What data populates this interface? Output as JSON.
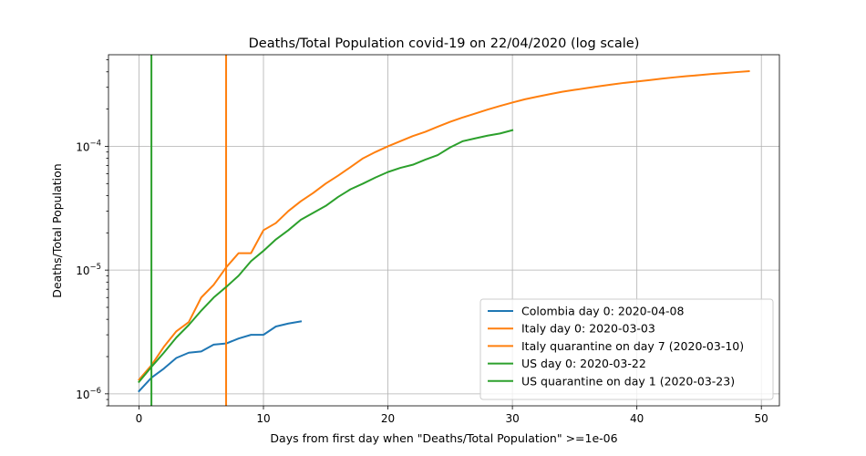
{
  "chart_data": {
    "type": "line",
    "title": "Deaths/Total Population covid-19 on 22/04/2020  (log scale)",
    "xlabel": "Days from first day when \"Deaths/Total Population\" >=1e-06",
    "ylabel": "Deaths/Total Population",
    "yscale": "log",
    "xlim": [
      -2.45,
      51.45
    ],
    "ylim": [
      8e-07,
      0.00055
    ],
    "x_ticks": [
      0,
      10,
      20,
      30,
      40,
      50
    ],
    "x_tick_labels": [
      "0",
      "10",
      "20",
      "30",
      "40",
      "50"
    ],
    "y_ticks": [
      1e-06,
      1e-05,
      0.0001
    ],
    "y_tick_labels": [
      {
        "base": "10",
        "exp": "−6"
      },
      {
        "base": "10",
        "exp": "−5"
      },
      {
        "base": "10",
        "exp": "−4"
      }
    ],
    "grid": true,
    "legend_position": "lower right",
    "series": [
      {
        "name": "Colombia day 0: 2020-04-08",
        "color": "#1f77b4",
        "x": [
          0,
          1,
          2,
          3,
          4,
          5,
          6,
          7,
          8,
          9,
          10,
          11,
          12,
          13
        ],
        "y": [
          1.05e-06,
          1.35e-06,
          1.6e-06,
          1.95e-06,
          2.15e-06,
          2.2e-06,
          2.5e-06,
          2.55e-06,
          2.8e-06,
          3e-06,
          3e-06,
          3.5e-06,
          3.7e-06,
          3.85e-06
        ]
      },
      {
        "name": "Italy day 0: 2020-03-03",
        "color": "#ff7f0e",
        "x": [
          0,
          1,
          2,
          3,
          4,
          5,
          6,
          7,
          8,
          9,
          10,
          11,
          12,
          13,
          14,
          15,
          16,
          17,
          18,
          19,
          20,
          21,
          22,
          23,
          24,
          25,
          26,
          27,
          28,
          29,
          30,
          31,
          32,
          33,
          34,
          35,
          36,
          37,
          38,
          39,
          40,
          41,
          42,
          43,
          44,
          45,
          46,
          47,
          48,
          49
        ],
        "y": [
          1.3e-06,
          1.7e-06,
          2.4e-06,
          3.2e-06,
          3.8e-06,
          6e-06,
          7.6e-06,
          1.05e-05,
          1.37e-05,
          1.37e-05,
          2.1e-05,
          2.4e-05,
          3e-05,
          3.6e-05,
          4.2e-05,
          5e-05,
          5.8e-05,
          6.8e-05,
          8e-05,
          9e-05,
          0.0001,
          0.00011,
          0.000121,
          0.000131,
          0.000144,
          0.000158,
          0.000171,
          0.000184,
          0.000198,
          0.000212,
          0.000226,
          0.00024,
          0.000252,
          0.000264,
          0.000276,
          0.000286,
          0.000296,
          0.000306,
          0.000316,
          0.000326,
          0.000334,
          0.000343,
          0.000352,
          0.000361,
          0.000369,
          0.000376,
          0.000384,
          0.000391,
          0.000398,
          0.000405
        ]
      },
      {
        "name": "Italy quarantine on day 7 (2020-03-10)",
        "color": "#ff7f0e",
        "vline_x": 7
      },
      {
        "name": "US day 0: 2020-03-22",
        "color": "#2ca02c",
        "x": [
          0,
          1,
          2,
          3,
          4,
          5,
          6,
          7,
          8,
          9,
          10,
          11,
          12,
          13,
          14,
          15,
          16,
          17,
          18,
          19,
          20,
          21,
          22,
          23,
          24,
          25,
          26,
          27,
          28,
          29,
          30
        ],
        "y": [
          1.25e-06,
          1.65e-06,
          2.15e-06,
          2.85e-06,
          3.6e-06,
          4.7e-06,
          6e-06,
          7.3e-06,
          9e-06,
          1.18e-05,
          1.43e-05,
          1.77e-05,
          2.1e-05,
          2.55e-05,
          2.9e-05,
          3.3e-05,
          3.9e-05,
          4.5e-05,
          5e-05,
          5.6e-05,
          6.2e-05,
          6.7e-05,
          7.1e-05,
          7.8e-05,
          8.5e-05,
          9.8e-05,
          0.00011,
          0.000116,
          0.000122,
          0.000127,
          0.000135
        ]
      },
      {
        "name": "US quarantine on day 1 (2020-03-23)",
        "color": "#2ca02c",
        "vline_x": 1
      }
    ]
  }
}
